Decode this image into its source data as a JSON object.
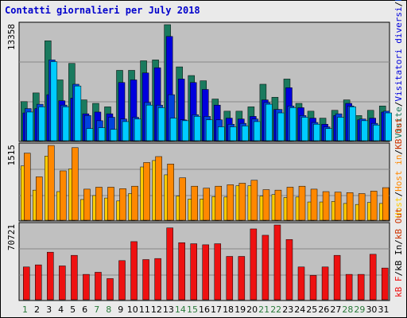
{
  "title": "Contatti giornalieri per July 2018",
  "chart_data": [
    {
      "type": "bar",
      "name": "pages-files-visits",
      "ymax_label": "13358",
      "ymax": 13358,
      "categories": [
        "1",
        "2",
        "3",
        "4",
        "5",
        "6",
        "7",
        "8",
        "9",
        "10",
        "11",
        "12",
        "13",
        "14",
        "15",
        "16",
        "17",
        "18",
        "19",
        "20",
        "21",
        "22",
        "23",
        "24",
        "25",
        "26",
        "27",
        "28",
        "29",
        "30",
        "31"
      ],
      "series": [
        {
          "name": "Visite",
          "color": "#1a7a5e",
          "values": [
            4500,
            5500,
            11500,
            7000,
            8900,
            4700,
            4300,
            3900,
            8100,
            8100,
            9200,
            9300,
            13358,
            8500,
            7500,
            6900,
            4800,
            3400,
            3400,
            3900,
            6500,
            5000,
            7100,
            4300,
            3400,
            2600,
            3500,
            4700,
            2900,
            3500,
            4000
          ]
        },
        {
          "name": "Visitatori diversi",
          "color": "#0000dd",
          "values": [
            3200,
            3700,
            5300,
            4600,
            4900,
            3100,
            3300,
            3100,
            6700,
            7000,
            7800,
            8400,
            12000,
            7100,
            6700,
            5900,
            4100,
            2600,
            2500,
            2800,
            4700,
            3600,
            6100,
            3800,
            2600,
            1900,
            2900,
            4300,
            2400,
            2600,
            3300
          ]
        },
        {
          "name": "Pagine",
          "color": "#0044dd",
          "values": [
            3700,
            4200,
            9300,
            4100,
            6500,
            2900,
            2300,
            2700,
            2500,
            2700,
            4400,
            4100,
            5300,
            2400,
            3000,
            2800,
            2400,
            1900,
            2000,
            2500,
            4400,
            3600,
            4000,
            2900,
            2100,
            1600,
            3100,
            4000,
            2500,
            2000,
            3400
          ]
        },
        {
          "name": "File",
          "color": "#00ccff",
          "values": [
            3300,
            3900,
            9100,
            3900,
            6300,
            1400,
            1500,
            1300,
            2200,
            2500,
            4100,
            3800,
            2600,
            2300,
            2800,
            2400,
            1600,
            1600,
            1700,
            2200,
            4200,
            3200,
            3800,
            2700,
            1900,
            1400,
            2700,
            3900,
            2300,
            1800,
            3200
          ]
        }
      ],
      "right_label": [
        "Visite",
        "/",
        "Visitatori diversi",
        "/",
        "Pagine",
        "/",
        "File",
        "/",
        "Contatti"
      ]
    },
    {
      "type": "bar",
      "name": "kb-out",
      "ymax_label": "1515",
      "ymax": 1515,
      "series": [
        {
          "name": "Host",
          "color": "#ffcc00",
          "values": [
            1100,
            610,
            1300,
            580,
            1040,
            420,
            500,
            450,
            390,
            540,
            1080,
            1210,
            920,
            490,
            430,
            430,
            480,
            470,
            700,
            700,
            490,
            520,
            460,
            470,
            370,
            370,
            380,
            340,
            320,
            360,
            340
          ]
        },
        {
          "name": "Host in",
          "color": "#ff8800",
          "values": [
            1360,
            880,
            1515,
            1000,
            1470,
            630,
            670,
            670,
            640,
            690,
            1170,
            1290,
            1140,
            860,
            690,
            650,
            690,
            720,
            750,
            810,
            620,
            610,
            670,
            690,
            630,
            580,
            570,
            560,
            540,
            590,
            660
          ]
        }
      ],
      "right_label": [
        "Host",
        "/",
        "Host in",
        "/",
        "KB Out"
      ]
    },
    {
      "type": "bar",
      "name": "kb-in",
      "ymax_label": "70721",
      "ymax": 70721,
      "series": [
        {
          "name": "kB F",
          "color": "#ee1111",
          "values": [
            31000,
            33000,
            45000,
            32000,
            42000,
            24000,
            26000,
            20000,
            37000,
            55000,
            38000,
            39000,
            68000,
            54000,
            53000,
            52000,
            53000,
            41000,
            41000,
            67000,
            61000,
            70721,
            57000,
            31000,
            23000,
            31000,
            42000,
            24000,
            24000,
            43000,
            30000
          ]
        }
      ],
      "right_label": [
        "kB F",
        "/",
        "kB In",
        "/",
        "kB Out"
      ]
    }
  ],
  "weekend_days": [
    1,
    7,
    8,
    14,
    15,
    21,
    22,
    28,
    29
  ],
  "colors": {
    "axis_text": "#000000",
    "weekday": "#000000",
    "weekend": "#2a7a3a",
    "panel_bg": "#c0c0c0",
    "grid": "#888888",
    "vis_text": "#1a7a5e"
  }
}
